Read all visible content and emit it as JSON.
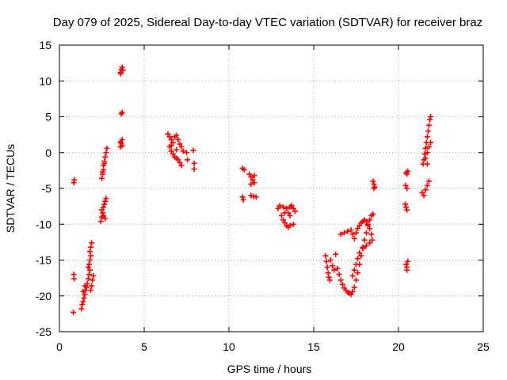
{
  "chart_data": {
    "type": "scatter",
    "title": "Day 079 of 2025, Sidereal Day-to-day VTEC variation (SDTVAR) for receiver braz",
    "xlabel": "GPS time / hours",
    "ylabel": "SDTVAR / TECUs",
    "xlim": [
      0,
      25
    ],
    "ylim": [
      -25,
      15
    ],
    "xticks": [
      "0",
      "5",
      "10",
      "15",
      "20",
      "25"
    ],
    "yticks": [
      "15",
      "10",
      "5",
      "0",
      "-5",
      "-10",
      "-15",
      "-20",
      "-25"
    ],
    "grid": true,
    "marker": "+",
    "color": "#ff0000",
    "points": [
      [
        0.82,
        -22.3
      ],
      [
        0.85,
        -17.0
      ],
      [
        0.87,
        -17.6
      ],
      [
        0.85,
        -4.2
      ],
      [
        0.88,
        -3.8
      ],
      [
        1.3,
        -21.8
      ],
      [
        1.35,
        -21.2
      ],
      [
        1.4,
        -20.8
      ],
      [
        1.45,
        -20.3
      ],
      [
        1.5,
        -19.8
      ],
      [
        1.4,
        -19.4
      ],
      [
        1.55,
        -19.2
      ],
      [
        1.6,
        -18.8
      ],
      [
        1.5,
        -18.6
      ],
      [
        1.65,
        -18.3
      ],
      [
        1.7,
        -17.6
      ],
      [
        1.75,
        -17.0
      ],
      [
        1.8,
        -16.4
      ],
      [
        1.7,
        -16.0
      ],
      [
        1.75,
        -15.6
      ],
      [
        1.8,
        -15.0
      ],
      [
        1.85,
        -14.4
      ],
      [
        1.8,
        -13.8
      ],
      [
        1.85,
        -13.2
      ],
      [
        1.9,
        -12.6
      ],
      [
        1.95,
        -17.8
      ],
      [
        1.9,
        -18.6
      ],
      [
        1.85,
        -19.2
      ],
      [
        2.0,
        -17.2
      ],
      [
        2.45,
        -9.6
      ],
      [
        2.5,
        -9.0
      ],
      [
        2.55,
        -8.4
      ],
      [
        2.5,
        -8.0
      ],
      [
        2.6,
        -7.6
      ],
      [
        2.65,
        -7.2
      ],
      [
        2.7,
        -6.8
      ],
      [
        2.75,
        -6.4
      ],
      [
        2.6,
        -8.8
      ],
      [
        2.7,
        -9.2
      ],
      [
        2.5,
        -3.6
      ],
      [
        2.55,
        -3.0
      ],
      [
        2.6,
        -2.4
      ],
      [
        2.6,
        -1.8
      ],
      [
        2.65,
        -1.2
      ],
      [
        2.7,
        -0.6
      ],
      [
        2.75,
        0.0
      ],
      [
        2.8,
        0.6
      ],
      [
        2.55,
        -2.7
      ],
      [
        2.65,
        -1.5
      ],
      [
        3.6,
        0.8
      ],
      [
        3.65,
        1.3
      ],
      [
        3.7,
        1.8
      ],
      [
        3.6,
        1.5
      ],
      [
        3.7,
        1.0
      ],
      [
        3.65,
        5.4
      ],
      [
        3.7,
        5.6
      ],
      [
        3.6,
        11.2
      ],
      [
        3.65,
        11.6
      ],
      [
        3.7,
        11.9
      ],
      [
        3.75,
        11.5
      ],
      [
        3.62,
        11.0
      ],
      [
        6.4,
        2.6
      ],
      [
        6.5,
        2.2
      ],
      [
        6.6,
        1.8
      ],
      [
        6.7,
        1.4
      ],
      [
        6.8,
        2.2
      ],
      [
        6.9,
        2.4
      ],
      [
        7.0,
        1.8
      ],
      [
        7.1,
        1.2
      ],
      [
        7.2,
        0.8
      ],
      [
        7.3,
        0.2
      ],
      [
        6.5,
        0.8
      ],
      [
        6.6,
        0.2
      ],
      [
        6.7,
        -0.2
      ],
      [
        6.8,
        -0.6
      ],
      [
        6.9,
        -0.8
      ],
      [
        7.0,
        -1.0
      ],
      [
        7.1,
        -1.4
      ],
      [
        7.2,
        -1.8
      ],
      [
        6.9,
        0.4
      ],
      [
        6.6,
        1.0
      ],
      [
        7.5,
        0.0
      ],
      [
        7.55,
        -1.0
      ],
      [
        7.9,
        0.3
      ],
      [
        7.95,
        -1.5
      ],
      [
        7.95,
        -2.3
      ],
      [
        10.8,
        -2.2
      ],
      [
        10.9,
        -2.4
      ],
      [
        10.8,
        -6.2
      ],
      [
        10.85,
        -6.6
      ],
      [
        11.2,
        -3.0
      ],
      [
        11.3,
        -3.4
      ],
      [
        11.4,
        -3.8
      ],
      [
        11.5,
        -4.2
      ],
      [
        11.3,
        -4.4
      ],
      [
        11.5,
        -3.2
      ],
      [
        11.3,
        -6.0
      ],
      [
        11.45,
        -6.1
      ],
      [
        11.6,
        -6.2
      ],
      [
        12.9,
        -7.8
      ],
      [
        13.0,
        -7.4
      ],
      [
        13.1,
        -8.8
      ],
      [
        13.2,
        -9.4
      ],
      [
        13.3,
        -9.8
      ],
      [
        13.4,
        -10.2
      ],
      [
        13.5,
        -10.4
      ],
      [
        13.6,
        -10.2
      ],
      [
        13.8,
        -10.0
      ],
      [
        13.2,
        -7.6
      ],
      [
        13.4,
        -7.8
      ],
      [
        13.5,
        -8.4
      ],
      [
        13.6,
        -7.6
      ],
      [
        13.7,
        -7.4
      ],
      [
        13.8,
        -7.8
      ],
      [
        13.9,
        -8.2
      ],
      [
        13.6,
        -8.8
      ],
      [
        13.3,
        -8.4
      ],
      [
        15.7,
        -14.4
      ],
      [
        15.75,
        -15.2
      ],
      [
        15.8,
        -16.0
      ],
      [
        15.85,
        -16.8
      ],
      [
        15.9,
        -17.4
      ],
      [
        15.95,
        -17.8
      ],
      [
        16.0,
        -15.0
      ],
      [
        16.1,
        -15.8
      ],
      [
        16.2,
        -16.4
      ],
      [
        16.3,
        -14.2
      ],
      [
        16.4,
        -16.2
      ],
      [
        16.5,
        -17.0
      ],
      [
        16.6,
        -17.8
      ],
      [
        16.7,
        -18.4
      ],
      [
        16.8,
        -18.9
      ],
      [
        16.9,
        -19.2
      ],
      [
        17.0,
        -19.5
      ],
      [
        17.1,
        -19.6
      ],
      [
        17.2,
        -19.8
      ],
      [
        17.3,
        -19.4
      ],
      [
        17.4,
        -18.8
      ],
      [
        17.5,
        -17.8
      ],
      [
        17.6,
        -16.8
      ],
      [
        17.7,
        -15.6
      ],
      [
        17.8,
        -14.4
      ],
      [
        17.9,
        -13.2
      ],
      [
        18.0,
        -12.2
      ],
      [
        18.1,
        -11.2
      ],
      [
        18.2,
        -10.2
      ],
      [
        18.3,
        -9.4
      ],
      [
        18.4,
        -8.8
      ],
      [
        18.5,
        -8.6
      ],
      [
        16.6,
        -11.4
      ],
      [
        16.8,
        -11.2
      ],
      [
        17.0,
        -11.0
      ],
      [
        17.2,
        -10.8
      ],
      [
        17.3,
        -11.4
      ],
      [
        17.4,
        -12.0
      ],
      [
        17.5,
        -11.2
      ],
      [
        17.6,
        -10.6
      ],
      [
        17.7,
        -10.2
      ],
      [
        17.8,
        -9.8
      ],
      [
        17.9,
        -9.6
      ],
      [
        18.0,
        -9.4
      ],
      [
        18.1,
        -9.6
      ],
      [
        18.2,
        -10.0
      ],
      [
        18.3,
        -10.6
      ],
      [
        18.4,
        -11.4
      ],
      [
        18.45,
        -12.2
      ],
      [
        18.3,
        -12.6
      ],
      [
        18.1,
        -13.0
      ],
      [
        17.9,
        -13.4
      ],
      [
        17.7,
        -14.0
      ],
      [
        17.6,
        -14.8
      ],
      [
        17.5,
        -15.6
      ],
      [
        17.4,
        -16.4
      ],
      [
        17.3,
        -17.2
      ],
      [
        18.5,
        -4.0
      ],
      [
        18.55,
        -4.4
      ],
      [
        18.6,
        -4.8
      ],
      [
        18.55,
        -5.0
      ],
      [
        20.45,
        -15.6
      ],
      [
        20.5,
        -16.0
      ],
      [
        20.55,
        -15.2
      ],
      [
        20.5,
        -16.4
      ],
      [
        20.4,
        -7.2
      ],
      [
        20.45,
        -7.6
      ],
      [
        20.5,
        -8.0
      ],
      [
        20.42,
        -4.6
      ],
      [
        20.5,
        -5.0
      ],
      [
        20.45,
        -2.8
      ],
      [
        20.5,
        -3.0
      ],
      [
        20.55,
        -2.6
      ],
      [
        21.4,
        -5.6
      ],
      [
        21.5,
        -6.0
      ],
      [
        21.6,
        -5.2
      ],
      [
        21.7,
        -4.6
      ],
      [
        21.8,
        -4.0
      ],
      [
        21.45,
        -1.6
      ],
      [
        21.5,
        -1.0
      ],
      [
        21.55,
        -0.2
      ],
      [
        21.6,
        0.6
      ],
      [
        21.65,
        1.4
      ],
      [
        21.7,
        2.2
      ],
      [
        21.75,
        3.0
      ],
      [
        21.8,
        3.8
      ],
      [
        21.85,
        4.6
      ],
      [
        21.9,
        5.0
      ],
      [
        21.6,
        -0.8
      ],
      [
        21.7,
        0.0
      ],
      [
        21.8,
        0.8
      ],
      [
        21.9,
        1.4
      ],
      [
        21.7,
        -1.6
      ]
    ]
  }
}
